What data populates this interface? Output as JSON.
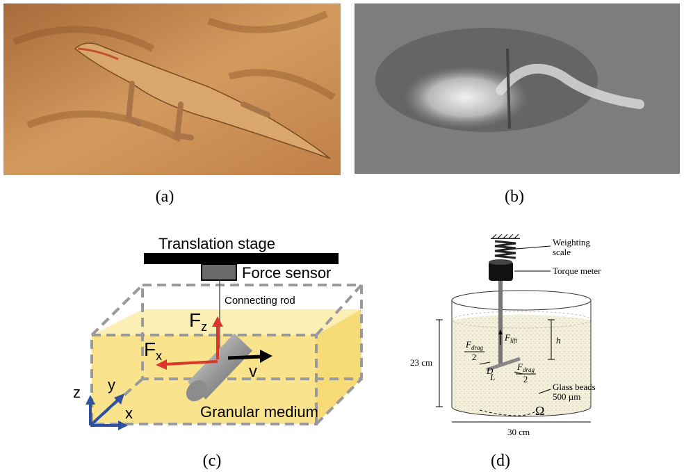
{
  "panels": [
    {
      "label": "(a)"
    },
    {
      "label": "(b)"
    },
    {
      "label": "(c)",
      "translation_stage": "Translation stage",
      "force_sensor": "Force sensor",
      "connecting_rod": "Connecting rod",
      "force_z": {
        "symbol": "F",
        "sub": "z"
      },
      "force_x": {
        "symbol": "F",
        "sub": "x"
      },
      "velocity": "v",
      "axes": {
        "z": "z",
        "y": "y",
        "x": "x"
      },
      "medium": "Granular medium"
    },
    {
      "label": "(d)",
      "scale": [
        "Weighting",
        "scale"
      ],
      "torque_meter": "Torque meter",
      "height": "h",
      "depth": "23 cm",
      "lift": {
        "symbol": "F",
        "sub": "lift"
      },
      "drag_left": {
        "symbol": "F",
        "sub": "drag",
        "den": "2"
      },
      "drag_right": {
        "symbol": "F",
        "sub": "drag",
        "den": "2"
      },
      "diameter": "D",
      "length": "L",
      "beads": [
        "Glass beads",
        "500 µm"
      ],
      "rotation": "Ω",
      "width": "30 cm"
    }
  ]
}
